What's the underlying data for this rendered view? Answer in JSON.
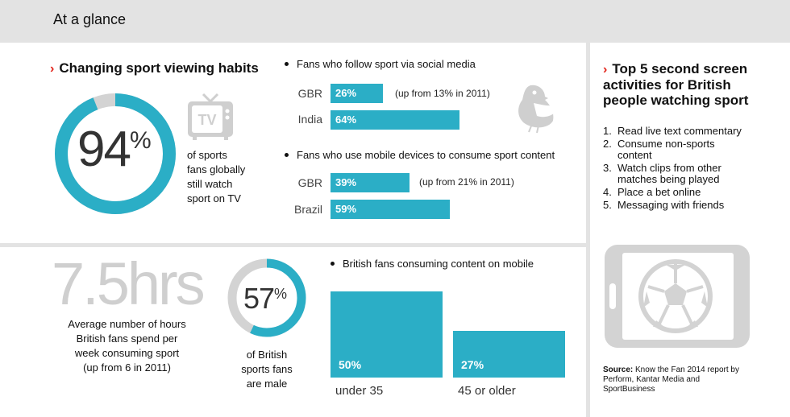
{
  "header": {
    "title": "At a glance"
  },
  "viewing": {
    "title": "Changing sport viewing habits",
    "donut_percent": "94",
    "donut_value": 94,
    "percent_sign": "%",
    "tv_icon_text": "TV",
    "caption": [
      "of sports",
      "fans globally",
      "still watch",
      "sport on TV"
    ]
  },
  "social": {
    "heading": "Fans who follow sport via social media",
    "rows": [
      {
        "country": "GBR",
        "label": "26%",
        "value": 26,
        "note": "(up from 13% in 2011)"
      },
      {
        "country": "India",
        "label": "64%",
        "value": 64,
        "note": ""
      }
    ]
  },
  "mobile_devices": {
    "heading": "Fans who use mobile devices to consume sport content",
    "rows": [
      {
        "country": "GBR",
        "label": "39%",
        "value": 39,
        "note": "(up from 21% in 2011)"
      },
      {
        "country": "Brazil",
        "label": "59%",
        "value": 59,
        "note": ""
      }
    ]
  },
  "hours": {
    "big": "7.5hrs",
    "caption": [
      "Average number of hours",
      "British fans spend per",
      "week consuming sport",
      "(up from 6 in 2011)"
    ]
  },
  "male": {
    "donut_percent": "57",
    "donut_value": 57,
    "percent_sign": "%",
    "caption": [
      "of British",
      "sports fans",
      "are male"
    ]
  },
  "mobile_content": {
    "heading": "British fans consuming content on mobile",
    "chart_data": {
      "type": "bar",
      "categories": [
        "under 35",
        "45 or older"
      ],
      "values": [
        50,
        27
      ],
      "labels": [
        "50%",
        "27%"
      ]
    }
  },
  "second_screen": {
    "title": [
      "Top 5 second screen",
      "activities for British",
      "people watching sport"
    ],
    "items": [
      {
        "num": "1.",
        "lines": [
          "Read live text commentary"
        ]
      },
      {
        "num": "2.",
        "lines": [
          "Consume non-sports",
          "content"
        ]
      },
      {
        "num": "3.",
        "lines": [
          "Watch clips from other",
          "matches being played"
        ]
      },
      {
        "num": "4.",
        "lines": [
          "Place a bet online"
        ]
      },
      {
        "num": "5.",
        "lines": [
          "Messaging with friends"
        ]
      }
    ]
  },
  "source": {
    "label": "Source:",
    "text_1": " Know the Fan 2014 report by",
    "text_2": "Perform, Kantar Media and",
    "text_3": "SportBusiness"
  },
  "colors": {
    "accent": "#2baec6",
    "chevron": "#e2231a",
    "muted": "#d3d3d3",
    "divider": "#e3e3e3"
  }
}
